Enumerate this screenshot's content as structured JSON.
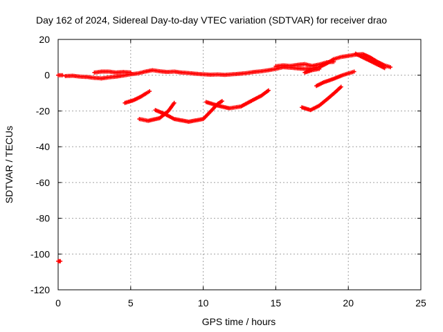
{
  "chart_data": {
    "type": "scatter",
    "title": "Day 162 of 2024, Sidereal Day-to-day VTEC variation (SDTVAR) for receiver drao",
    "xlabel": "GPS time / hours",
    "ylabel": "SDTVAR / TECUs",
    "xlim": [
      0,
      25
    ],
    "ylim": [
      -120,
      20
    ],
    "xticks": [
      0,
      5,
      10,
      15,
      20,
      25
    ],
    "yticks": [
      20,
      0,
      -20,
      -40,
      -60,
      -80,
      -100,
      -120
    ],
    "grid": true,
    "marker": "+",
    "series": [
      {
        "name": "SDTVAR",
        "color": "#ff0000",
        "tracks": [
          {
            "points": [
              [
                0.0,
                0.0
              ],
              [
                0.3,
                0.0
              ]
            ]
          },
          {
            "points": [
              [
                0.5,
                -0.5
              ],
              [
                1.0,
                -0.3
              ],
              [
                1.5,
                -0.8
              ],
              [
                2.0,
                -1.0
              ],
              [
                2.5,
                -1.5
              ],
              [
                3.0,
                -1.8
              ],
              [
                3.5,
                -1.2
              ],
              [
                4.0,
                -0.8
              ],
              [
                4.5,
                -0.2
              ],
              [
                5.0,
                0.5
              ],
              [
                5.5,
                1.0
              ],
              [
                6.0,
                2.0
              ],
              [
                6.5,
                2.8
              ],
              [
                7.0,
                2.2
              ],
              [
                7.5,
                1.8
              ],
              [
                8.0,
                2.0
              ],
              [
                8.5,
                1.5
              ],
              [
                9.0,
                1.2
              ],
              [
                9.5,
                0.8
              ],
              [
                10.0,
                0.5
              ],
              [
                10.5,
                0.3
              ],
              [
                11.0,
                0.4
              ],
              [
                11.5,
                0.2
              ],
              [
                12.0,
                0.5
              ],
              [
                12.5,
                0.8
              ],
              [
                13.0,
                1.2
              ],
              [
                13.5,
                1.8
              ],
              [
                14.0,
                2.2
              ],
              [
                14.5,
                2.8
              ],
              [
                15.0,
                3.5
              ],
              [
                15.5,
                4.5
              ],
              [
                16.0,
                4.2
              ],
              [
                16.5,
                3.8
              ],
              [
                17.0,
                3.5
              ],
              [
                17.5,
                3.8
              ],
              [
                18.0,
                4.5
              ],
              [
                18.5,
                6.5
              ],
              [
                19.0,
                9.0
              ],
              [
                19.5,
                10.2
              ],
              [
                20.0,
                10.8
              ],
              [
                20.5,
                11.5
              ],
              [
                21.0,
                11.8
              ],
              [
                21.5,
                10.0
              ],
              [
                22.0,
                7.5
              ],
              [
                22.5,
                5.5
              ],
              [
                22.9,
                4.5
              ]
            ]
          },
          {
            "points": [
              [
                2.5,
                1.5
              ],
              [
                3.0,
                2.0
              ],
              [
                3.5,
                2.0
              ],
              [
                4.0,
                1.5
              ],
              [
                4.5,
                1.8
              ],
              [
                5.0,
                1.5
              ]
            ]
          },
          {
            "points": [
              [
                15.0,
                5.0
              ],
              [
                15.5,
                5.5
              ],
              [
                16.0,
                5.2
              ],
              [
                16.5,
                5.8
              ],
              [
                17.0,
                6.2
              ],
              [
                17.5,
                5.2
              ],
              [
                18.0,
                6.0
              ],
              [
                18.5,
                7.2
              ],
              [
                19.0,
                7.5
              ]
            ]
          },
          {
            "points": [
              [
                17.0,
                1.5
              ],
              [
                17.5,
                2.8
              ],
              [
                18.0,
                3.5
              ]
            ]
          },
          {
            "points": [
              [
                20.5,
                12.0
              ],
              [
                21.0,
                10.0
              ],
              [
                21.5,
                8.0
              ],
              [
                22.0,
                6.0
              ],
              [
                22.5,
                4.0
              ]
            ]
          },
          {
            "points": [
              [
                4.6,
                -15.5
              ],
              [
                5.2,
                -14.0
              ],
              [
                5.7,
                -12.0
              ],
              [
                6.1,
                -10.0
              ],
              [
                6.3,
                -9.0
              ]
            ]
          },
          {
            "points": [
              [
                5.6,
                -24.5
              ],
              [
                6.2,
                -25.5
              ],
              [
                7.0,
                -24.0
              ],
              [
                7.6,
                -20.0
              ],
              [
                8.0,
                -15.5
              ]
            ]
          },
          {
            "points": [
              [
                6.7,
                -19.5
              ],
              [
                7.3,
                -21.5
              ],
              [
                8.0,
                -24.5
              ],
              [
                9.0,
                -26.0
              ],
              [
                10.0,
                -24.5
              ],
              [
                10.6,
                -19.5
              ],
              [
                11.0,
                -16.0
              ],
              [
                11.3,
                -14.5
              ]
            ]
          },
          {
            "points": [
              [
                10.2,
                -15.0
              ],
              [
                11.0,
                -17.0
              ],
              [
                11.8,
                -18.5
              ],
              [
                12.6,
                -17.5
              ],
              [
                13.4,
                -14.0
              ],
              [
                14.0,
                -11.5
              ],
              [
                14.5,
                -8.5
              ]
            ]
          },
          {
            "points": [
              [
                16.8,
                -18.0
              ],
              [
                17.4,
                -19.5
              ],
              [
                18.0,
                -17.0
              ],
              [
                18.6,
                -13.0
              ],
              [
                19.1,
                -9.5
              ],
              [
                19.5,
                -6.5
              ]
            ]
          },
          {
            "points": [
              [
                17.8,
                -6.0
              ],
              [
                18.3,
                -4.0
              ],
              [
                19.0,
                -2.0
              ],
              [
                19.6,
                0.0
              ],
              [
                20.0,
                1.0
              ],
              [
                20.4,
                2.0
              ]
            ]
          },
          {
            "points": [
              [
                0.0,
                -104.0
              ],
              [
                0.15,
                -104.0
              ]
            ]
          }
        ]
      }
    ],
    "x_tick_labels": [
      "0",
      "5",
      "10",
      "15",
      "20",
      "25"
    ],
    "y_tick_labels": [
      "20",
      "0",
      "-20",
      "-40",
      "-60",
      "-80",
      "-100",
      "-120"
    ]
  }
}
